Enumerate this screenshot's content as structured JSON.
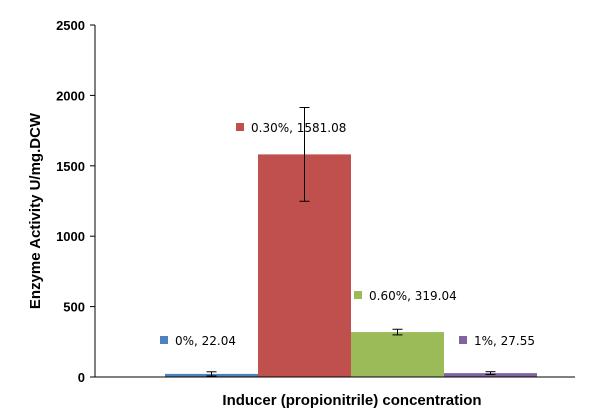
{
  "chart_data": {
    "type": "bar",
    "title": "",
    "xlabel": "Inducer (propionitrile) concentration",
    "ylabel": "Enzyme Activity  U/mg.DCW",
    "ylim": [
      0,
      2500
    ],
    "yticks": [
      "0",
      "500",
      "1000",
      "1500",
      "2000",
      "2500"
    ],
    "yticks_values": [
      0,
      500,
      1000,
      1500,
      2000,
      2500
    ],
    "grid": false,
    "legend": "none",
    "categories": [
      "0%",
      "0.30%",
      "0.60%",
      "1%"
    ],
    "values": [
      22.04,
      1581.08,
      319.04,
      27.55
    ],
    "errors": [
      15,
      333,
      20,
      10
    ],
    "colors": [
      "#4f81bd",
      "#c0504d",
      "#9bbb59",
      "#8064a2"
    ],
    "labels": [
      "0%, 22.04",
      "0.30%, 1581.08",
      "0.60%, 319.04",
      "1%, 27.55"
    ]
  }
}
